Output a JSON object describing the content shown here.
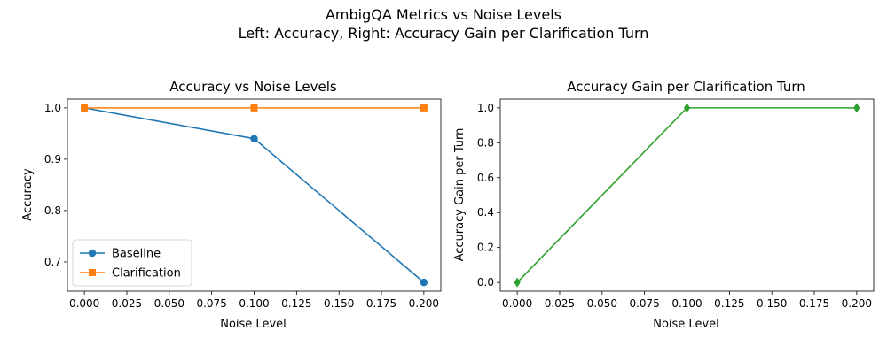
{
  "figure": {
    "suptitle_line1": "AmbigQA Metrics vs Noise Levels",
    "suptitle_line2": "Left: Accuracy, Right: Accuracy Gain per Clarification Turn"
  },
  "chart_data": [
    {
      "type": "line",
      "title": "Accuracy vs Noise Levels",
      "xlabel": "Noise Level",
      "ylabel": "Accuracy",
      "x": [
        0.0,
        0.1,
        0.2
      ],
      "xlim": [
        -0.01,
        0.21
      ],
      "ylim": [
        0.643,
        1.017
      ],
      "xticks": [
        "0.000",
        "0.025",
        "0.050",
        "0.075",
        "0.100",
        "0.125",
        "0.150",
        "0.175",
        "0.200"
      ],
      "yticks": [
        "0.7",
        "0.8",
        "0.9",
        "1.0"
      ],
      "legend_position": "lower-left",
      "grid": false,
      "series": [
        {
          "name": "Baseline",
          "values": [
            1.0,
            0.94,
            0.66
          ],
          "color": "#1f77b4",
          "marker": "circle"
        },
        {
          "name": "Clarification",
          "values": [
            1.0,
            1.0,
            1.0
          ],
          "color": "#ff7f0e",
          "marker": "square"
        }
      ]
    },
    {
      "type": "line",
      "title": "Accuracy Gain per Clarification Turn",
      "xlabel": "Noise Level",
      "ylabel": "Accuracy Gain per Turn",
      "x": [
        0.0,
        0.1,
        0.2
      ],
      "xlim": [
        -0.01,
        0.21
      ],
      "ylim": [
        -0.05,
        1.05
      ],
      "xticks": [
        "0.000",
        "0.025",
        "0.050",
        "0.075",
        "0.100",
        "0.125",
        "0.150",
        "0.175",
        "0.200"
      ],
      "yticks": [
        "0.0",
        "0.2",
        "0.4",
        "0.6",
        "0.8",
        "1.0"
      ],
      "grid": false,
      "series": [
        {
          "values": [
            0.0,
            1.0,
            1.0
          ],
          "color": "#2ca02c",
          "marker": "diamond"
        }
      ]
    }
  ]
}
